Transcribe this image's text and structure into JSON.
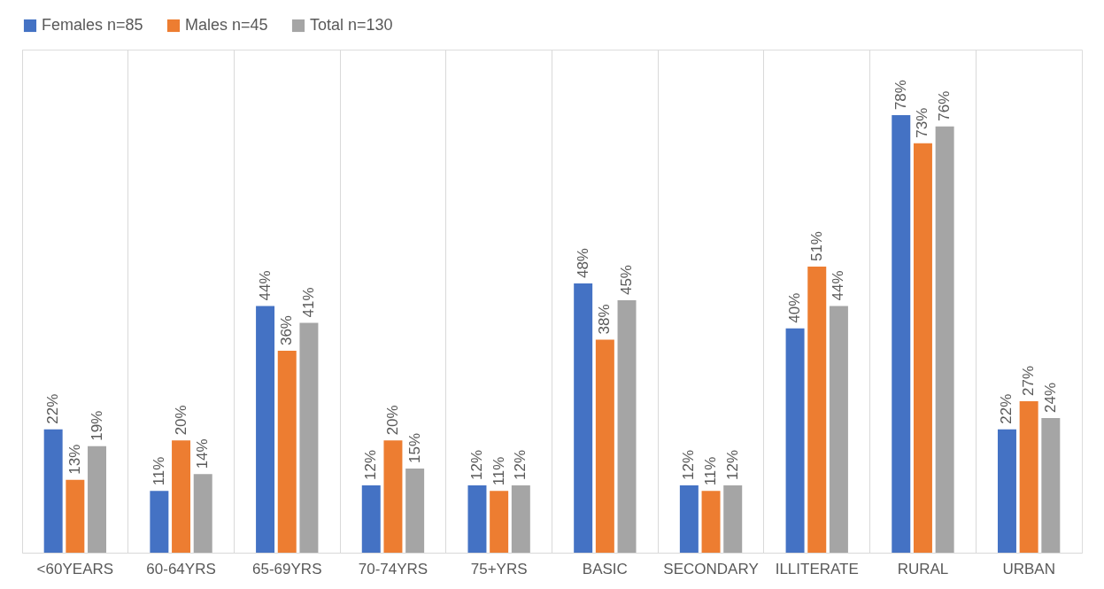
{
  "chart_data": {
    "type": "bar",
    "categories": [
      "<60YEARS",
      "60-64YRS",
      "65-69YRS",
      "70-74YRS",
      "75+YRS",
      "BASIC",
      "SECONDARY",
      "ILLITERATE",
      "RURAL",
      "URBAN"
    ],
    "series": [
      {
        "name": "Females n=85",
        "color": "#4472c4",
        "values": [
          22,
          11,
          44,
          12,
          12,
          48,
          12,
          40,
          78,
          22
        ],
        "value_labels": [
          "22%",
          "11%",
          "44%",
          "12%",
          "12%",
          "48%",
          "12%",
          "40%",
          "78%",
          "22%"
        ]
      },
      {
        "name": "Males n=45",
        "color": "#ed7d31",
        "values": [
          13,
          20,
          36,
          20,
          11,
          38,
          11,
          51,
          73,
          27
        ],
        "value_labels": [
          "13%",
          "20%",
          "36%",
          "20%",
          "11%",
          "38%",
          "11%",
          "51%",
          "73%",
          "27%"
        ]
      },
      {
        "name": "Total n=130",
        "color": "#a5a5a5",
        "values": [
          19,
          14,
          41,
          15,
          12,
          45,
          12,
          44,
          76,
          24
        ],
        "value_labels": [
          "19%",
          "14%",
          "41%",
          "15%",
          "12%",
          "45%",
          "12%",
          "44%",
          "76%",
          "24%"
        ]
      }
    ],
    "legend": "top",
    "grid": "x"
  }
}
